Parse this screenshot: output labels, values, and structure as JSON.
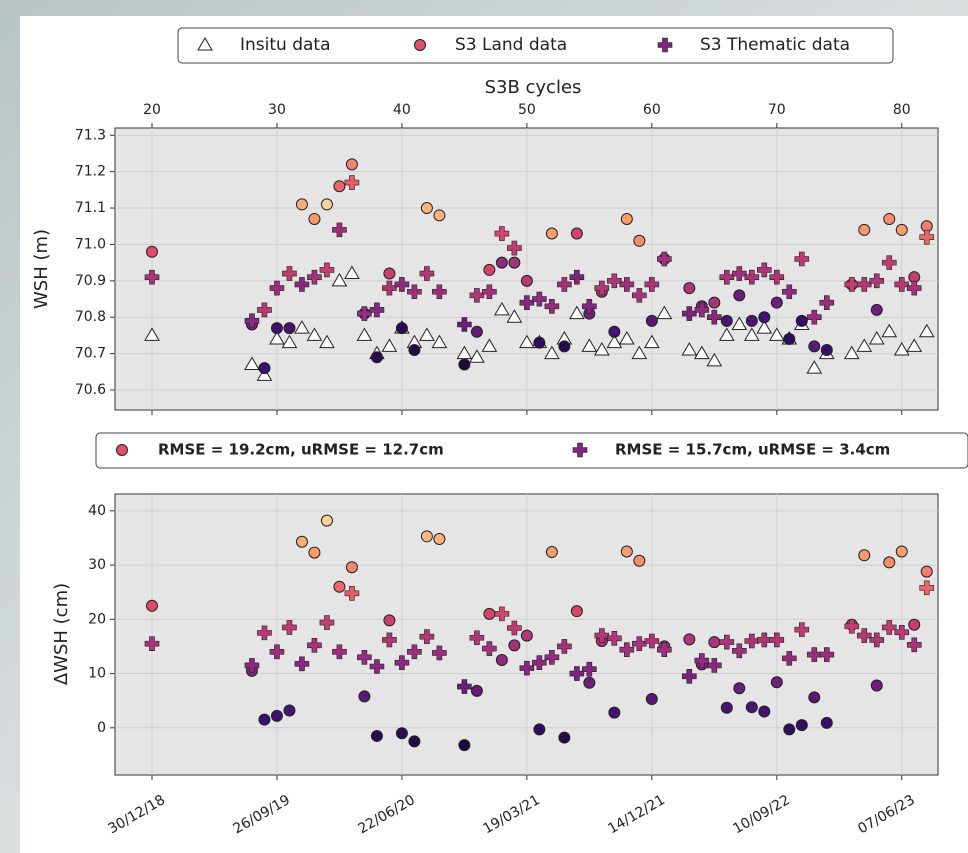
{
  "chart_data": [
    {
      "type": "scatter",
      "xlabel": "S3B cycles",
      "ylabel": "WSH (m)",
      "grid": true,
      "legend": "above",
      "colormap": [
        "#000004",
        "#3b0f70",
        "#8c2981",
        "#de4968",
        "#fe9f6d",
        "#fcfdbf"
      ],
      "x": [
        20,
        28,
        29,
        30,
        31,
        32,
        33,
        34,
        35,
        36,
        37,
        38,
        39,
        40,
        41,
        42,
        43,
        45,
        46,
        47,
        48,
        49,
        50,
        51,
        52,
        53,
        54,
        55,
        56,
        57,
        58,
        59,
        60,
        61,
        63,
        64,
        65,
        66,
        67,
        68,
        69,
        70,
        71,
        72,
        73,
        74,
        76,
        77,
        78,
        79,
        80,
        81,
        82
      ],
      "xlim": [
        17.04,
        82.9
      ],
      "xticks": [
        20,
        30,
        40,
        50,
        60,
        70,
        80
      ],
      "ylim": [
        70.545,
        71.32
      ],
      "yticks": [
        70.6,
        70.7,
        70.8,
        70.9,
        {
          "value": 71,
          "label": "71.0"
        },
        71.1,
        71.2,
        71.3
      ],
      "series": [
        {
          "name": "Insitu data",
          "marker": "triangle",
          "color": "#ffffff",
          "values": [
            70.75,
            70.67,
            70.64,
            70.74,
            70.73,
            70.77,
            70.75,
            70.73,
            70.9,
            70.92,
            70.75,
            70.7,
            70.72,
            70.77,
            70.73,
            70.75,
            70.73,
            70.7,
            70.69,
            70.72,
            70.82,
            70.8,
            70.73,
            70.73,
            70.7,
            70.74,
            70.81,
            70.72,
            70.71,
            70.73,
            70.74,
            70.7,
            70.73,
            70.81,
            70.71,
            70.7,
            70.68,
            70.75,
            70.78,
            70.75,
            70.77,
            70.75,
            70.74,
            70.78,
            70.66,
            70.7,
            70.7,
            70.72,
            70.74,
            70.76,
            70.71,
            70.72,
            70.76
          ]
        },
        {
          "name": "S3 Land data",
          "marker": "circle",
          "color": "#e0506a",
          "values": [
            70.98,
            70.78,
            70.66,
            70.77,
            70.77,
            71.11,
            71.07,
            71.11,
            71.16,
            71.22,
            70.81,
            70.69,
            70.92,
            70.77,
            70.71,
            71.1,
            71.08,
            70.67,
            70.76,
            70.93,
            70.95,
            70.95,
            70.9,
            70.73,
            71.03,
            70.72,
            71.03,
            70.81,
            70.87,
            70.76,
            71.07,
            71.01,
            70.79,
            70.96,
            70.88,
            70.83,
            70.84,
            70.79,
            70.86,
            70.79,
            70.8,
            70.84,
            70.74,
            70.79,
            70.72,
            70.71,
            70.89,
            71.04,
            70.82,
            71.07,
            71.04,
            70.91,
            71.05
          ]
        },
        {
          "name": "S3 Thematic data",
          "marker": "plus",
          "color": "#7b2a7d",
          "values": [
            70.91,
            70.79,
            70.82,
            70.88,
            70.92,
            70.89,
            70.91,
            70.93,
            71.04,
            71.17,
            70.81,
            70.82,
            70.88,
            70.89,
            70.87,
            70.92,
            70.87,
            70.78,
            70.86,
            70.87,
            71.03,
            70.99,
            70.84,
            70.85,
            70.83,
            70.89,
            70.91,
            70.83,
            70.88,
            70.9,
            70.89,
            70.86,
            70.89,
            70.96,
            70.81,
            70.82,
            70.8,
            70.91,
            70.92,
            70.91,
            70.93,
            70.91,
            70.87,
            70.96,
            70.8,
            70.84,
            70.89,
            70.89,
            70.9,
            70.95,
            70.89,
            70.88,
            71.02
          ]
        }
      ]
    },
    {
      "type": "scatter",
      "ylabel": "ΔWSH (cm)",
      "grid": true,
      "legend": "above",
      "colormap": [
        "#000004",
        "#3b0f70",
        "#8c2981",
        "#de4968",
        "#fe9f6d",
        "#fcfdbf"
      ],
      "x": [
        20,
        28,
        29,
        30,
        31,
        32,
        33,
        34,
        35,
        36,
        37,
        38,
        39,
        40,
        41,
        42,
        43,
        45,
        46,
        47,
        48,
        49,
        50,
        51,
        52,
        53,
        54,
        55,
        56,
        57,
        58,
        59,
        60,
        61,
        63,
        64,
        65,
        66,
        67,
        68,
        69,
        70,
        71,
        72,
        73,
        74,
        76,
        77,
        78,
        79,
        80,
        81,
        82
      ],
      "xlim": [
        17.04,
        82.9
      ],
      "xticks": [
        {
          "value": 20,
          "label": "30/12/18"
        },
        {
          "value": 30,
          "label": "26/09/19"
        },
        {
          "value": 40,
          "label": "22/06/20"
        },
        {
          "value": 50,
          "label": "19/03/21"
        },
        {
          "value": 60,
          "label": "14/12/21"
        },
        {
          "value": 70,
          "label": "10/09/22"
        },
        {
          "value": 80,
          "label": "07/06/23"
        }
      ],
      "ylim": [
        -8.7,
        43.1
      ],
      "yticks": [
        0,
        10,
        20,
        30,
        40
      ],
      "series": [
        {
          "name": "RMSE = 19.2cm, uRMSE = 12.7cm",
          "marker": "circle",
          "color": "#e0506a",
          "values": [
            22.5,
            10.5,
            1.5,
            2.2,
            3.2,
            34.3,
            32.3,
            38.2,
            26,
            29.6,
            5.8,
            -1.5,
            19.8,
            -1,
            -2.5,
            35.3,
            34.8,
            -3.2,
            6.8,
            21,
            12.5,
            15.2,
            17,
            -0.3,
            32.4,
            -1.8,
            21.5,
            8.3,
            16,
            2.8,
            32.5,
            30.8,
            5.3,
            15,
            16.3,
            11.7,
            15.8,
            3.7,
            7.3,
            3.8,
            3,
            8.4,
            -0.3,
            0.5,
            5.6,
            0.9,
            19,
            31.8,
            7.8,
            30.5,
            32.5,
            19,
            28.8
          ]
        },
        {
          "name": "RMSE = 15.7cm, uRMSE = 3.4cm",
          "marker": "plus",
          "color": "#7b2a7d",
          "values": [
            15.5,
            11.5,
            17.5,
            14,
            18.5,
            11.8,
            15.2,
            19.4,
            14,
            24.8,
            13,
            11.3,
            16.2,
            12,
            14,
            16.8,
            13.8,
            7.6,
            16.6,
            14.6,
            21,
            18.4,
            11,
            12,
            13,
            15,
            10,
            10.8,
            17,
            16.5,
            14.4,
            15.5,
            16,
            14.4,
            9.5,
            12.4,
            11.5,
            15.8,
            14.2,
            16,
            16.2,
            16.2,
            12.8,
            18.1,
            13.5,
            13.5,
            18.7,
            17,
            16.2,
            18.5,
            17.6,
            15.3,
            25.8
          ]
        }
      ]
    }
  ]
}
